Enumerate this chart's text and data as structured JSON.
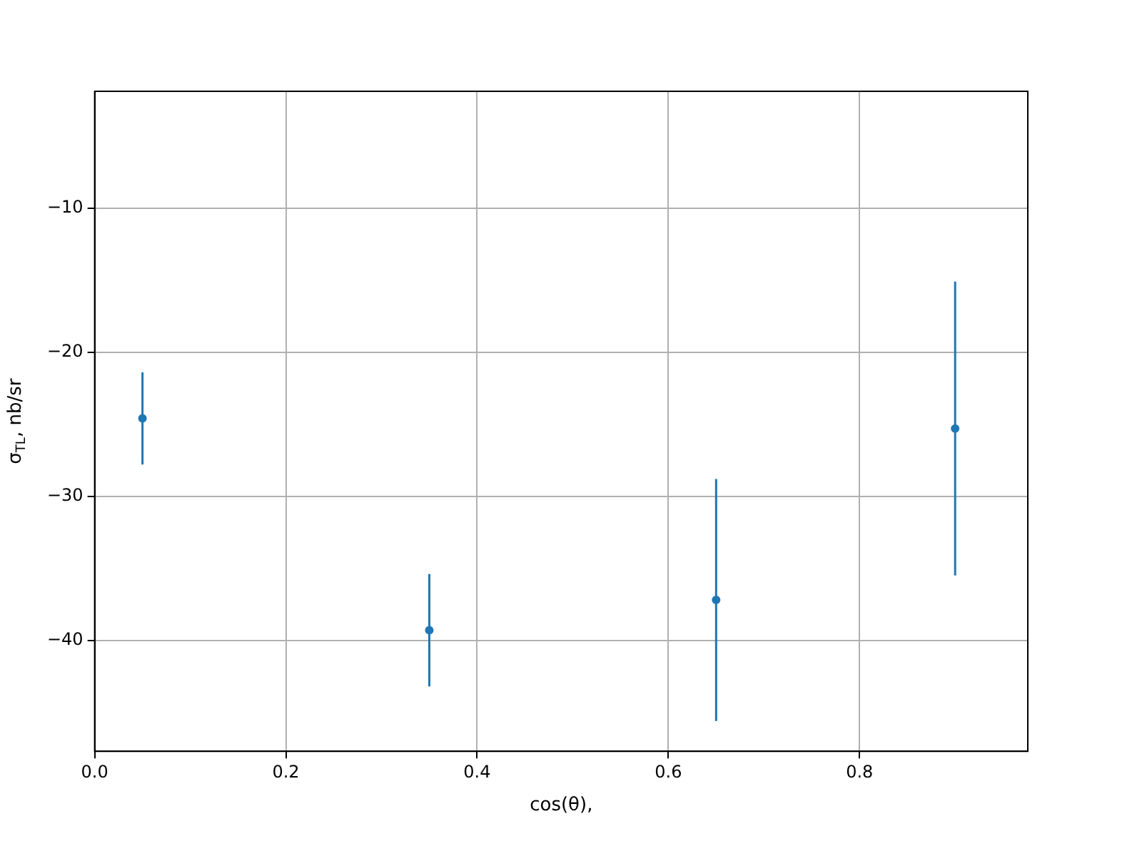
{
  "chart_data": {
    "type": "scatter",
    "xlabel": "cos(θ),",
    "ylabel": "σ$_{TL}$, nb/sr",
    "x": [
      0.05,
      0.35,
      0.65,
      0.9
    ],
    "series": [
      {
        "color": "#1f77b4",
        "values": [
          -24.6,
          -39.3,
          -37.2,
          -25.3
        ],
        "errors": [
          3.2,
          3.9,
          8.4,
          10.2
        ]
      }
    ],
    "xlim": [
      0,
      0.976
    ],
    "xticks": [
      {
        "value": 0,
        "label": "0.0"
      },
      {
        "value": 0.2,
        "label": "0.2"
      },
      {
        "value": 0.4,
        "label": "0.4"
      },
      {
        "value": 0.6,
        "label": "0.6"
      },
      {
        "value": 0.8,
        "label": "0.8"
      }
    ],
    "ylim": [
      -47.7,
      -1.9
    ],
    "yticks": [
      {
        "value": -40,
        "label": "−40"
      },
      {
        "value": -30,
        "label": "−30"
      },
      {
        "value": -20,
        "label": "−20"
      },
      {
        "value": -10,
        "label": "−10"
      }
    ],
    "grid": true,
    "marker": "circle",
    "legend": false
  }
}
